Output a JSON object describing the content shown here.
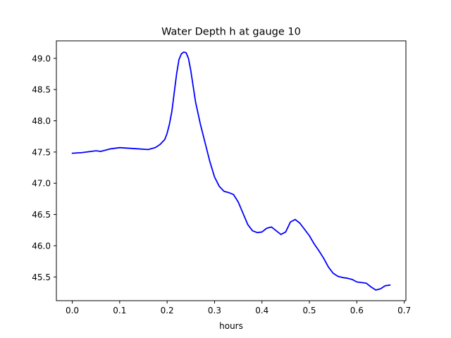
{
  "chart_data": {
    "type": "line",
    "title": "Water Depth h at gauge 10",
    "xlabel": "hours",
    "ylabel": "",
    "xlim": [
      -0.0335,
      0.7035
    ],
    "ylim": [
      45.12,
      49.28
    ],
    "xticks": [
      0.0,
      0.1,
      0.2,
      0.3,
      0.4,
      0.5,
      0.6,
      0.7
    ],
    "xtick_labels": [
      "0.0",
      "0.1",
      "0.2",
      "0.3",
      "0.4",
      "0.5",
      "0.6",
      "0.7"
    ],
    "yticks": [
      45.5,
      46.0,
      46.5,
      47.0,
      47.5,
      48.0,
      48.5,
      49.0
    ],
    "ytick_labels": [
      "45.5",
      "46.0",
      "46.5",
      "47.0",
      "47.5",
      "48.0",
      "48.5",
      "49.0"
    ],
    "grid": false,
    "series": [
      {
        "color": "#0000ff",
        "x": [
          0.0,
          0.02,
          0.03,
          0.04,
          0.05,
          0.06,
          0.07,
          0.08,
          0.09,
          0.1,
          0.12,
          0.14,
          0.16,
          0.175,
          0.185,
          0.195,
          0.2,
          0.205,
          0.21,
          0.215,
          0.22,
          0.225,
          0.23,
          0.235,
          0.24,
          0.245,
          0.25,
          0.255,
          0.26,
          0.27,
          0.28,
          0.29,
          0.3,
          0.31,
          0.32,
          0.33,
          0.34,
          0.35,
          0.36,
          0.37,
          0.38,
          0.39,
          0.4,
          0.41,
          0.42,
          0.43,
          0.44,
          0.45,
          0.46,
          0.47,
          0.48,
          0.49,
          0.5,
          0.51,
          0.52,
          0.53,
          0.54,
          0.55,
          0.56,
          0.57,
          0.58,
          0.59,
          0.6,
          0.61,
          0.62,
          0.63,
          0.64,
          0.65,
          0.66,
          0.67
        ],
        "y": [
          47.48,
          47.49,
          47.5,
          47.51,
          47.52,
          47.51,
          47.53,
          47.55,
          47.56,
          47.57,
          47.56,
          47.55,
          47.54,
          47.57,
          47.62,
          47.7,
          47.8,
          47.95,
          48.15,
          48.45,
          48.75,
          48.98,
          49.07,
          49.1,
          49.09,
          49.0,
          48.8,
          48.55,
          48.3,
          47.95,
          47.65,
          47.35,
          47.1,
          46.95,
          46.87,
          46.85,
          46.82,
          46.7,
          46.52,
          46.34,
          46.24,
          46.21,
          46.22,
          46.28,
          46.3,
          46.24,
          46.18,
          46.22,
          46.38,
          46.42,
          46.36,
          46.26,
          46.16,
          46.03,
          45.92,
          45.8,
          45.66,
          45.56,
          45.51,
          45.49,
          45.48,
          45.46,
          45.42,
          45.41,
          45.4,
          45.34,
          45.29,
          45.31,
          45.36,
          45.37
        ]
      }
    ]
  }
}
